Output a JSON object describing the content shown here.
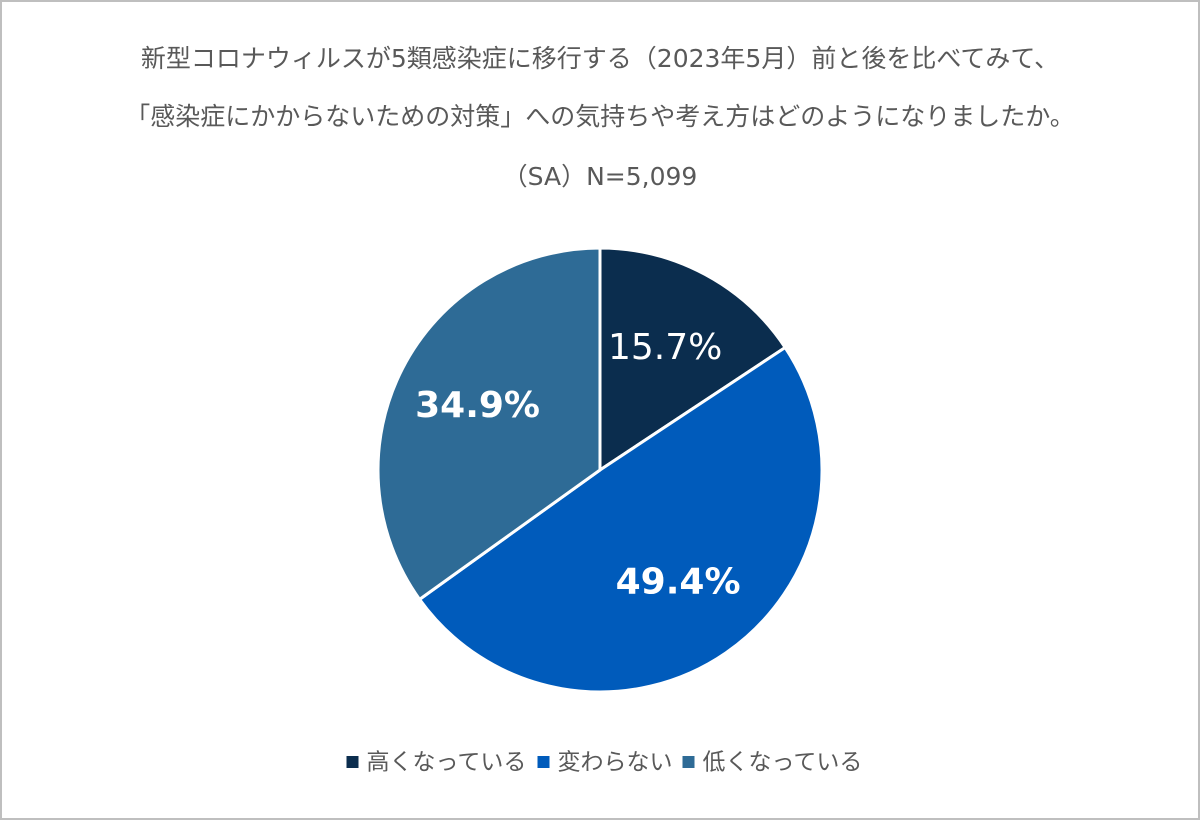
{
  "chart_data": {
    "type": "pie",
    "title": [
      "新型コロナウィルスが5類感染症に移行する（2023年5月）前と後を比べてみて、",
      "「感染症にかからないための対策」への気持ちや考え方はどのようになりましたか。"
    ],
    "subtitle": "（SA）N=5,099",
    "categories": [
      "高くなっている",
      "変わらない",
      "低くなっている"
    ],
    "values": [
      15.7,
      49.4,
      34.9
    ],
    "value_labels": [
      "15.7%",
      "49.4%",
      "34.9%"
    ],
    "colors": [
      "#0b2d4e",
      "#005bbb",
      "#2e6b96"
    ],
    "legend": "bottom"
  }
}
